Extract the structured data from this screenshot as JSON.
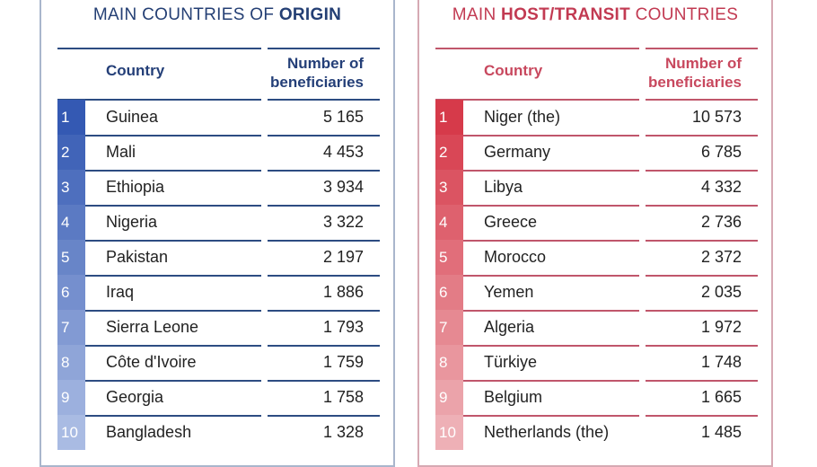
{
  "origin": {
    "title_prefix": "MAIN COUNTRIES OF ",
    "title_bold": "ORIGIN",
    "col_country": "Country",
    "col_number_line1": "Number of",
    "col_number_line2": "beneficiaries",
    "colors": {
      "top": "#3459b3",
      "bottom": "#a9bbe3"
    },
    "rows": [
      {
        "rank": "1",
        "country": "Guinea",
        "number": "5 165"
      },
      {
        "rank": "2",
        "country": "Mali",
        "number": "4 453"
      },
      {
        "rank": "3",
        "country": "Ethiopia",
        "number": "3 934"
      },
      {
        "rank": "4",
        "country": "Nigeria",
        "number": "3 322"
      },
      {
        "rank": "5",
        "country": "Pakistan",
        "number": "2 197"
      },
      {
        "rank": "6",
        "country": "Iraq",
        "number": "1 886"
      },
      {
        "rank": "7",
        "country": "Sierra Leone",
        "number": "1 793"
      },
      {
        "rank": "8",
        "country": "Côte d'Ivoire",
        "number": "1 759"
      },
      {
        "rank": "9",
        "country": "Georgia",
        "number": "1 758"
      },
      {
        "rank": "10",
        "country": "Bangladesh",
        "number": "1 328"
      }
    ]
  },
  "host": {
    "title_prefix": "MAIN ",
    "title_bold": "HOST/TRANSIT",
    "title_suffix": " COUNTRIES",
    "col_country": "Country",
    "col_number_line1": "Number of",
    "col_number_line2": "beneficiaries",
    "colors": {
      "top": "#d63a4a",
      "bottom": "#eeb0b6"
    },
    "rows": [
      {
        "rank": "1",
        "country": "Niger (the)",
        "number": "10 573"
      },
      {
        "rank": "2",
        "country": "Germany",
        "number": "6 785"
      },
      {
        "rank": "3",
        "country": "Libya",
        "number": "4 332"
      },
      {
        "rank": "4",
        "country": "Greece",
        "number": "2 736"
      },
      {
        "rank": "5",
        "country": "Morocco",
        "number": "2 372"
      },
      {
        "rank": "6",
        "country": "Yemen",
        "number": "2 035"
      },
      {
        "rank": "7",
        "country": "Algeria",
        "number": "1 972"
      },
      {
        "rank": "8",
        "country": "Türkiye",
        "number": "1 748"
      },
      {
        "rank": "9",
        "country": "Belgium",
        "number": "1 665"
      },
      {
        "rank": "10",
        "country": "Netherlands (the)",
        "number": "1 485"
      }
    ]
  }
}
